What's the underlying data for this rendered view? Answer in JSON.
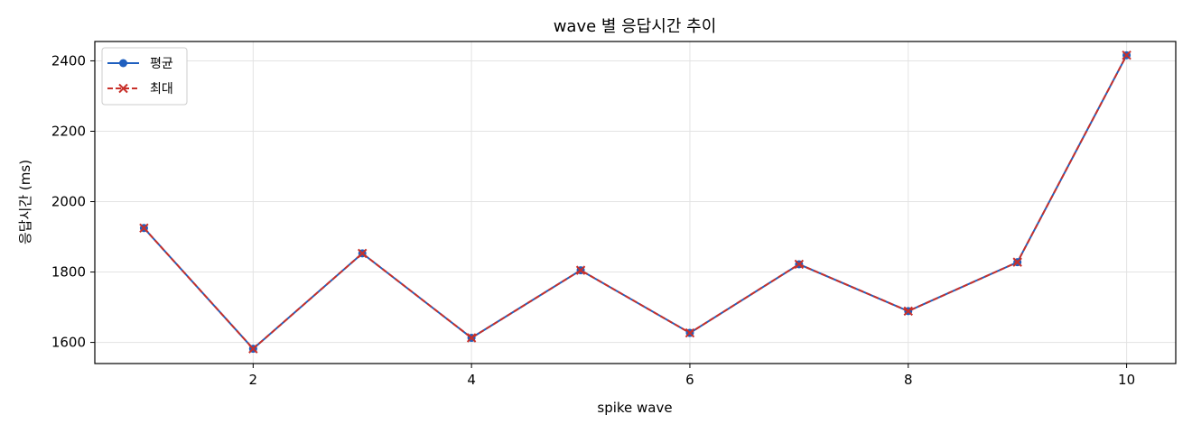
{
  "chart_data": {
    "type": "line",
    "title": "wave 별 응답시간 추이",
    "xlabel": "spike wave",
    "ylabel": "응답시간 (ms)",
    "x": [
      1,
      2,
      3,
      4,
      5,
      6,
      7,
      8,
      9,
      10
    ],
    "xlim": [
      0.55,
      10.45
    ],
    "ylim": [
      1540,
      2455
    ],
    "x_ticks": [
      2,
      4,
      6,
      8,
      10
    ],
    "y_ticks": [
      1600,
      1800,
      2000,
      2200,
      2400
    ],
    "grid": true,
    "legend_position": "top-left",
    "series": [
      {
        "name": "평균",
        "values": [
          1925,
          1582,
          1853,
          1613,
          1805,
          1627,
          1822,
          1689,
          1828,
          2416
        ],
        "color": "#1f5fbf",
        "line_style": "solid",
        "marker": "circle"
      },
      {
        "name": "최대",
        "values": [
          1925,
          1582,
          1853,
          1613,
          1805,
          1627,
          1822,
          1689,
          1828,
          2416
        ],
        "color": "#c8302a",
        "line_style": "dashed",
        "marker": "x"
      }
    ]
  }
}
